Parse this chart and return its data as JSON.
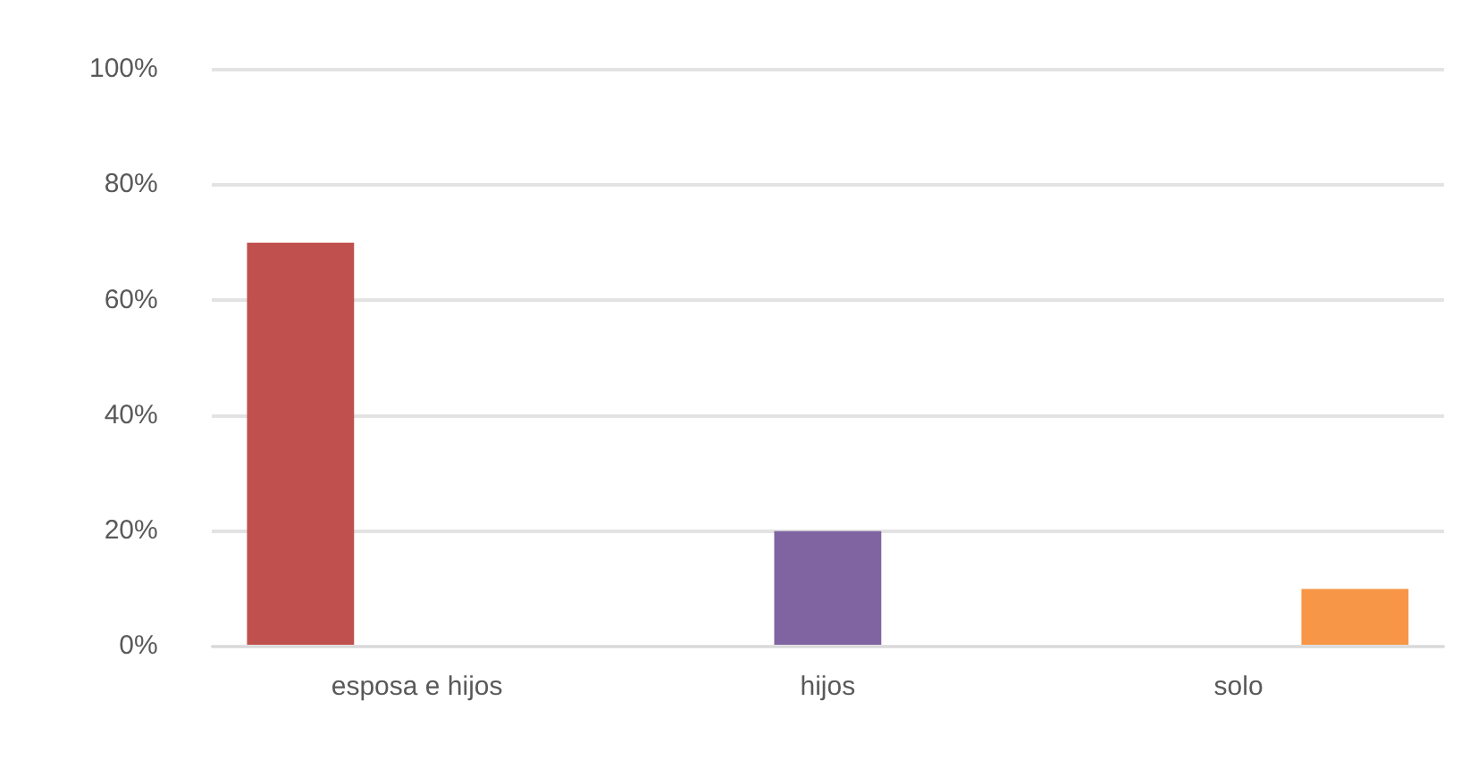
{
  "chart_data": {
    "type": "bar",
    "categories": [
      "esposa e hijos",
      "hijos",
      "solo"
    ],
    "series": [
      {
        "color": "#c0504d",
        "values": [
          70,
          null,
          null
        ]
      },
      {
        "color": "#8064a2",
        "values": [
          null,
          20,
          null
        ]
      },
      {
        "color": "#f79646",
        "values": [
          null,
          null,
          10
        ]
      }
    ],
    "ylim": [
      0,
      100
    ],
    "yticks": [
      {
        "value": 0,
        "label": "0%"
      },
      {
        "value": 20,
        "label": "20%"
      },
      {
        "value": 40,
        "label": "40%"
      },
      {
        "value": 60,
        "label": "60%"
      },
      {
        "value": 80,
        "label": "80%"
      },
      {
        "value": 100,
        "label": "100%"
      }
    ],
    "grid": "y",
    "legend": false
  }
}
